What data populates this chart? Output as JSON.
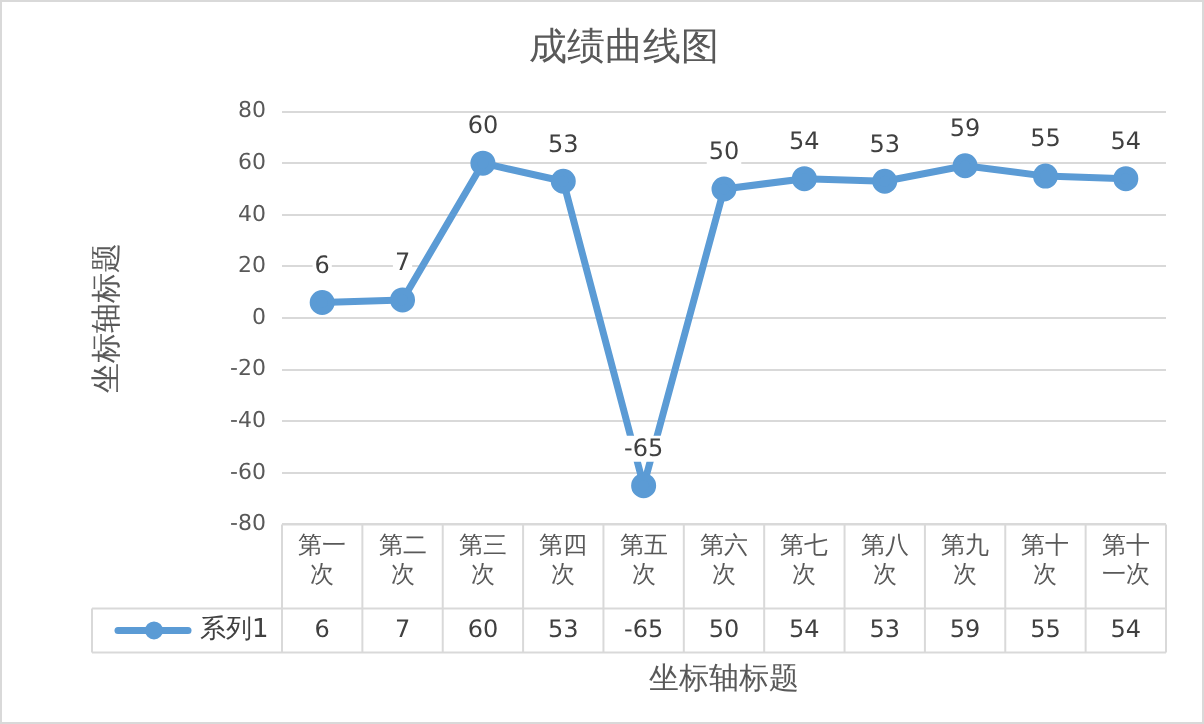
{
  "chart_data": {
    "type": "line",
    "title": "成绩曲线图",
    "xlabel": "坐标轴标题",
    "ylabel": "坐标轴标题",
    "categories": [
      "第一次",
      "第二次",
      "第三次",
      "第四次",
      "第五次",
      "第六次",
      "第七次",
      "第八次",
      "第九次",
      "第十次",
      "第十一次"
    ],
    "series": [
      {
        "name": "系列1",
        "color": "#5b9bd5",
        "values": [
          6,
          7,
          60,
          53,
          -65,
          50,
          54,
          53,
          59,
          55,
          54
        ],
        "value_labels": [
          "6",
          "7",
          "60",
          "53",
          "-65",
          "50",
          "54",
          "53",
          "59",
          "55",
          "54"
        ]
      }
    ],
    "ylim": [
      -80,
      80
    ],
    "yticks": [
      -80,
      -60,
      -40,
      -20,
      0,
      20,
      40,
      60,
      80
    ],
    "grid": "y",
    "legend": "bottom",
    "marker": "circle",
    "line_style": "solid",
    "data_labels": true
  }
}
